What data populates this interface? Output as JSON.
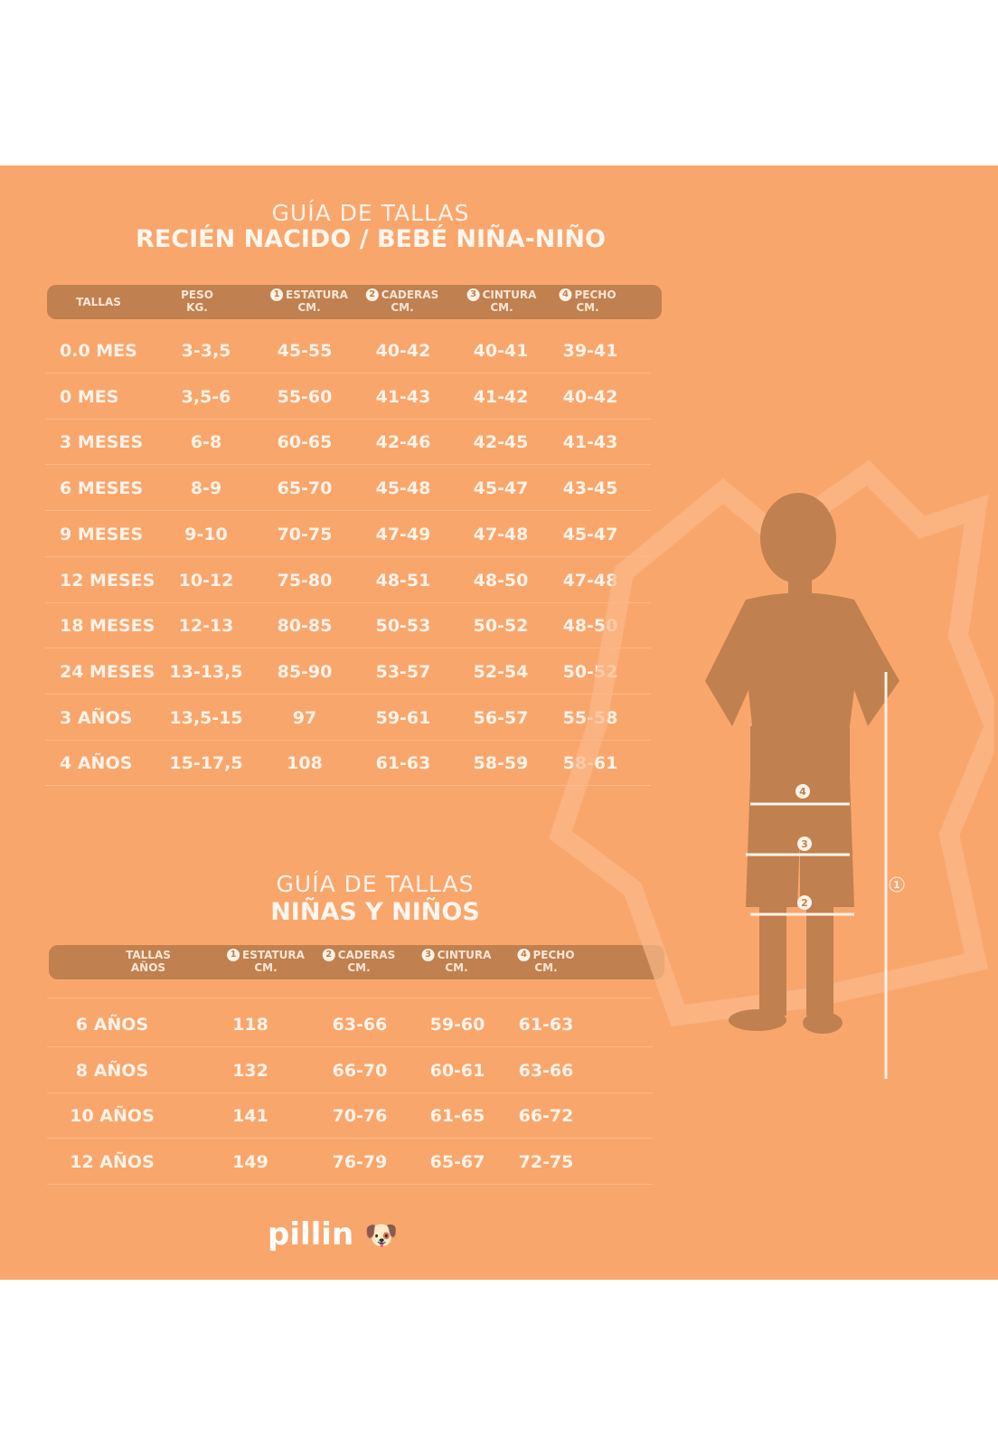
{
  "baby": {
    "title_light": "GUÍA DE TALLAS",
    "title_bold": "RECIÉN NACIDO / BEBÉ NIÑA-NIÑO",
    "headers": [
      {
        "num": "",
        "l1": "TALLAS",
        "l2": ""
      },
      {
        "num": "",
        "l1": "PESO",
        "l2": "KG."
      },
      {
        "num": "1",
        "l1": "ESTATURA",
        "l2": "CM."
      },
      {
        "num": "2",
        "l1": "CADERAS",
        "l2": "CM."
      },
      {
        "num": "3",
        "l1": "CINTURA",
        "l2": "CM."
      },
      {
        "num": "4",
        "l1": "PECHO",
        "l2": "CM."
      }
    ],
    "rows": [
      [
        "0.0 MES",
        "3-3,5",
        "45-55",
        "40-42",
        "40-41",
        "39-41"
      ],
      [
        "0 MES",
        "3,5-6",
        "55-60",
        "41-43",
        "41-42",
        "40-42"
      ],
      [
        "3 MESES",
        "6-8",
        "60-65",
        "42-46",
        "42-45",
        "41-43"
      ],
      [
        "6 MESES",
        "8-9",
        "65-70",
        "45-48",
        "45-47",
        "43-45"
      ],
      [
        "9 MESES",
        "9-10",
        "70-75",
        "47-49",
        "47-48",
        "45-47"
      ],
      [
        "12 MESES",
        "10-12",
        "75-80",
        "48-51",
        "48-50",
        "47-48"
      ],
      [
        "18 MESES",
        "12-13",
        "80-85",
        "50-53",
        "50-52",
        "48-50"
      ],
      [
        "24 MESES",
        "13-13,5",
        "85-90",
        "53-57",
        "52-54",
        "50-52"
      ],
      [
        "3 AÑOS",
        "13,5-15",
        "97",
        "59-61",
        "56-57",
        "55-58"
      ],
      [
        "4 AÑOS",
        "15-17,5",
        "108",
        "61-63",
        "58-59",
        "58-61"
      ]
    ]
  },
  "kids": {
    "title_light": "GUÍA DE TALLAS",
    "title_bold": "NIÑAS Y NIÑOS",
    "headers": [
      {
        "num": "",
        "l1": "TALLAS",
        "l2": "AÑOS"
      },
      {
        "num": "1",
        "l1": "ESTATURA",
        "l2": "CM."
      },
      {
        "num": "2",
        "l1": "CADERAS",
        "l2": "CM."
      },
      {
        "num": "3",
        "l1": "CINTURA",
        "l2": "CM."
      },
      {
        "num": "4",
        "l1": "PECHO",
        "l2": "CM."
      }
    ],
    "rows": [
      [
        "6 AÑOS",
        "118",
        "63-66",
        "59-60",
        "61-63"
      ],
      [
        "8 AÑOS",
        "132",
        "66-70",
        "60-61",
        "63-66"
      ],
      [
        "10 AÑOS",
        "141",
        "70-76",
        "61-65",
        "66-72"
      ],
      [
        "12 AÑOS",
        "149",
        "76-79",
        "65-67",
        "72-75"
      ]
    ]
  },
  "figure": {
    "markers": [
      "1",
      "2",
      "3",
      "4"
    ]
  },
  "logo": {
    "text": "pillin"
  },
  "colors": {
    "background": "#F9A66C",
    "header_bar": "#C0804F",
    "text": "#FFF3E8"
  }
}
